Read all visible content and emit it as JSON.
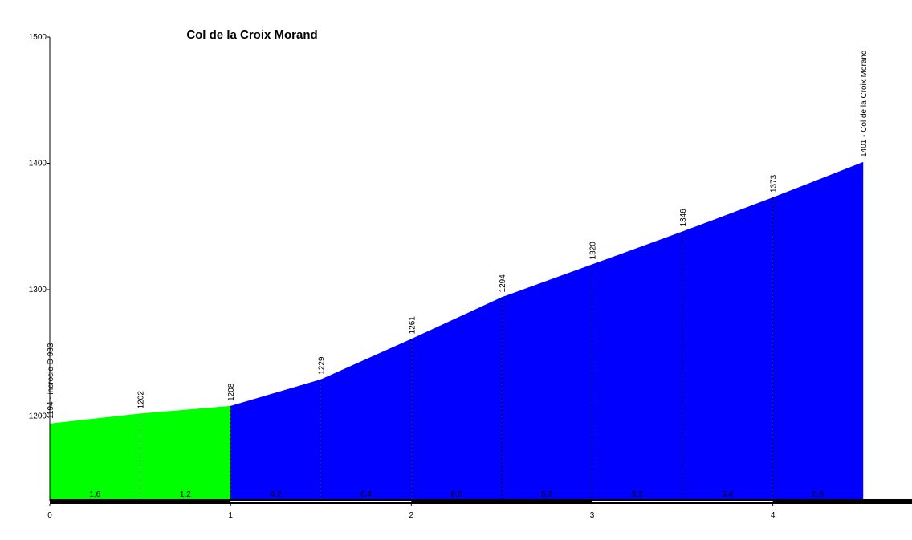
{
  "chart_data": {
    "type": "area",
    "title": "Col de la Croix Morand",
    "x": [
      0,
      0.5,
      1,
      1.5,
      2,
      2.5,
      3,
      3.5,
      4,
      4.5
    ],
    "values": [
      1194,
      1202,
      1208,
      1229,
      1261,
      1294,
      1320,
      1346,
      1373,
      1401
    ],
    "value_labels": [
      "1194 - incrocio D 983",
      "1202",
      "1208",
      "1229",
      "1261",
      "1294",
      "1320",
      "1346",
      "1373",
      "1401 - Col de la Croix Morand"
    ],
    "gradients": [
      {
        "value": 1.6,
        "label": "1,6"
      },
      {
        "value": 1.2,
        "label": "1,2"
      },
      {
        "value": 4.2,
        "label": "4,2"
      },
      {
        "value": 6.4,
        "label": "6,4"
      },
      {
        "value": 6.6,
        "label": "6,6"
      },
      {
        "value": 5.2,
        "label": "5,2"
      },
      {
        "value": 5.2,
        "label": "5,2"
      },
      {
        "value": 5.4,
        "label": "5,4"
      },
      {
        "value": 5.6,
        "label": "5,6"
      }
    ],
    "segment_colors": [
      "#00ff00",
      "#00ff00",
      "#0000ff",
      "#0000ff",
      "#0000ff",
      "#0000ff",
      "#0000ff",
      "#0000ff",
      "#0000ff"
    ],
    "xlim": [
      0,
      4.77
    ],
    "ylim": [
      1133,
      1500
    ],
    "xticks": [
      0,
      1,
      2,
      3,
      4
    ],
    "yticks": [
      1200,
      1300,
      1400,
      1500
    ]
  }
}
